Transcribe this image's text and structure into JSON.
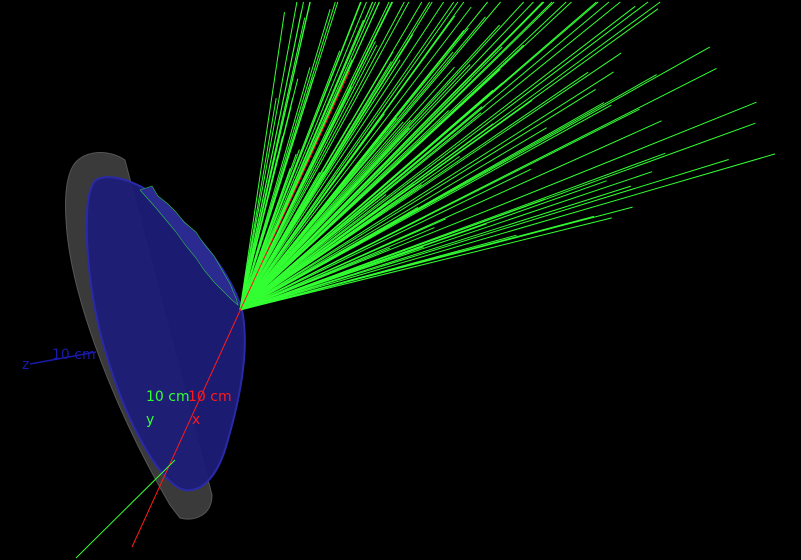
{
  "scene": {
    "background": "#000000",
    "colors": {
      "x_axis": "#ff1a1a",
      "y_axis": "#33ff33",
      "z_axis": "#1a1aaa",
      "tracks": "#33ff33",
      "detector_face": "#1c1c78",
      "detector_rim": "#3a3a3a"
    },
    "axes": {
      "x": {
        "name": "x",
        "length_label": "10 cm"
      },
      "y": {
        "name": "y",
        "length_label": "10 cm"
      },
      "z": {
        "name": "z",
        "length_label": "10 cm"
      }
    },
    "track_count": 150
  }
}
